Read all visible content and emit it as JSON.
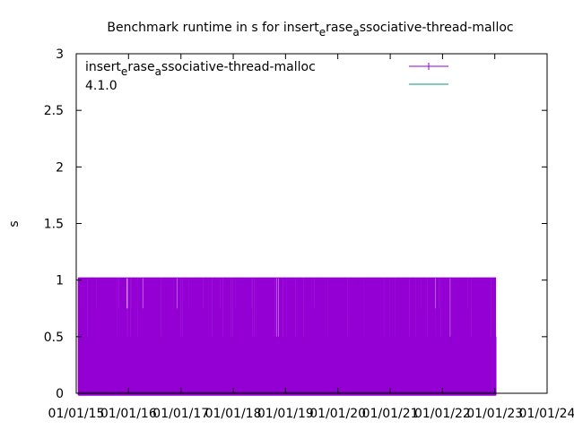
{
  "chart_data": {
    "type": "line",
    "title": "Benchmark runtime in s for insert_erase_associative-thread-malloc",
    "title_parts": {
      "a": "Benchmark runtime in s for insert",
      "b": "e",
      "c": "rase",
      "d": "a",
      "e": "ssociative-thread-malloc"
    },
    "ylabel": "s",
    "xlabel": "",
    "ylim": [
      0,
      3
    ],
    "xlim": [
      "2015-01-01",
      "2024-01-01"
    ],
    "y_ticks": [
      "0",
      "0.5",
      "1",
      "1.5",
      "2",
      "2.5",
      "3"
    ],
    "x_ticks": [
      "01/01/15",
      "01/01/16",
      "01/01/17",
      "01/01/18",
      "01/01/19",
      "01/01/20",
      "01/01/21",
      "01/01/22",
      "01/01/23",
      "01/01/24"
    ],
    "grid": false,
    "legend_position": "top-left",
    "series": [
      {
        "name": "insert_erase_associative-thread-malloc",
        "name_parts": {
          "a": "insert",
          "b": "e",
          "c": "rase",
          "d": "a",
          "e": "ssociative-thread-malloc"
        },
        "color": "#9400d3",
        "style": "errorbars",
        "date_range": [
          "2015-01-15",
          "2023-01-10"
        ],
        "values_low": 0,
        "values_high": 1.02
      },
      {
        "name": "4.1.0",
        "color": "#009e73",
        "style": "line",
        "values": []
      }
    ]
  }
}
